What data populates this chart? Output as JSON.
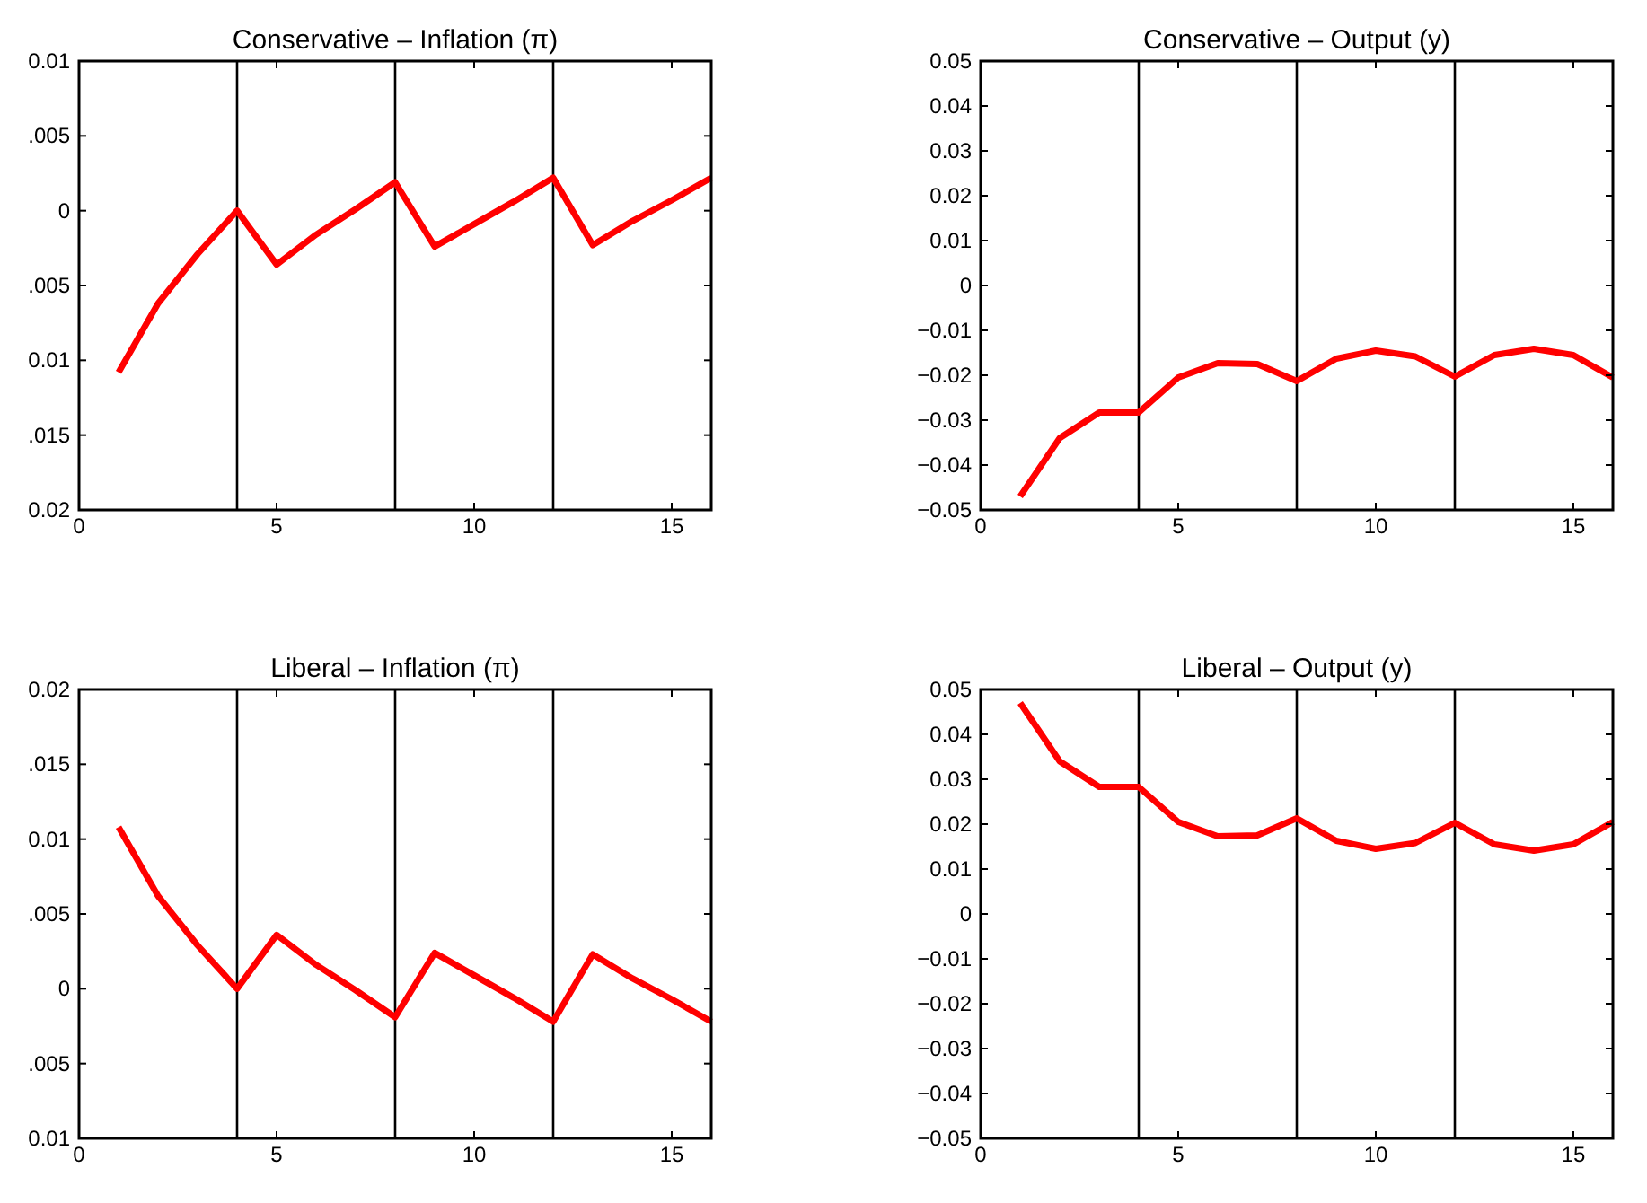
{
  "chart_data": [
    {
      "type": "line",
      "title": "Conservative – Inflation (π)",
      "x": [
        1,
        2,
        3,
        4,
        5,
        6,
        7,
        8,
        9,
        10,
        11,
        12,
        13,
        14,
        15,
        16
      ],
      "series": [
        {
          "color": "#ff0000",
          "values": [
            -0.0108,
            -0.0062,
            -0.0029,
            0.0,
            -0.0036,
            -0.0016,
            0.0001,
            0.0019,
            -0.0024,
            -0.0009,
            0.0006,
            0.0022,
            -0.0023,
            -0.0007,
            0.0007,
            0.0022
          ]
        }
      ],
      "xlim": [
        0,
        16
      ],
      "xticks": [
        0,
        5,
        10,
        15
      ],
      "ylim": [
        -0.02,
        0.01
      ],
      "yticks": [
        {
          "value": 0.01,
          "label": "0.01"
        },
        {
          "value": 0.005,
          "label": ".005"
        },
        0,
        {
          "value": -0.005,
          "label": ".005"
        },
        {
          "value": -0.01,
          "label": "0.01"
        },
        {
          "value": -0.015,
          "label": ".015"
        },
        {
          "value": -0.02,
          "label": "0.02"
        }
      ],
      "ref_lines": [
        {
          "axis": "x",
          "value": 4,
          "color": "#000000"
        },
        {
          "axis": "x",
          "value": 8,
          "color": "#000000"
        },
        {
          "axis": "x",
          "value": 12,
          "color": "#000000"
        }
      ]
    },
    {
      "type": "line",
      "title": "Conservative – Output (y)",
      "x": [
        1,
        2,
        3,
        4,
        5,
        6,
        7,
        8,
        9,
        10,
        11,
        12,
        13,
        14,
        15,
        16
      ],
      "series": [
        {
          "color": "#ff0000",
          "values": [
            -0.047,
            -0.034,
            -0.0283,
            -0.0283,
            -0.0205,
            -0.0173,
            -0.0175,
            -0.0213,
            -0.0163,
            -0.0145,
            -0.0158,
            -0.0203,
            -0.0155,
            -0.0141,
            -0.0155,
            -0.0205
          ]
        }
      ],
      "xlim": [
        0,
        16
      ],
      "xticks": [
        0,
        5,
        10,
        15
      ],
      "ylim": [
        -0.05,
        0.05
      ],
      "yticks": [
        -0.05,
        -0.04,
        -0.03,
        -0.02,
        -0.01,
        0,
        0.01,
        0.02,
        0.03,
        0.04,
        0.05
      ],
      "ref_lines": [
        {
          "axis": "x",
          "value": 4,
          "color": "#000000"
        },
        {
          "axis": "x",
          "value": 8,
          "color": "#000000"
        },
        {
          "axis": "x",
          "value": 12,
          "color": "#000000"
        }
      ]
    },
    {
      "type": "line",
      "title": "Liberal – Inflation (π)",
      "x": [
        1,
        2,
        3,
        4,
        5,
        6,
        7,
        8,
        9,
        10,
        11,
        12,
        13,
        14,
        15,
        16
      ],
      "series": [
        {
          "color": "#ff0000",
          "values": [
            0.0108,
            0.0062,
            0.0029,
            0.0,
            0.0036,
            0.0016,
            -0.0001,
            -0.0019,
            0.0024,
            0.0009,
            -0.0006,
            -0.0022,
            0.0023,
            0.0007,
            -0.0007,
            -0.0022
          ]
        }
      ],
      "xlim": [
        0,
        16
      ],
      "xticks": [
        0,
        5,
        10,
        15
      ],
      "ylim": [
        -0.01,
        0.02
      ],
      "yticks": [
        {
          "value": 0.02,
          "label": "0.02"
        },
        {
          "value": 0.015,
          "label": ".015"
        },
        {
          "value": 0.01,
          "label": "0.01"
        },
        {
          "value": 0.005,
          "label": ".005"
        },
        0,
        {
          "value": -0.005,
          "label": ".005"
        },
        {
          "value": -0.01,
          "label": "0.01"
        }
      ],
      "ref_lines": [
        {
          "axis": "x",
          "value": 4,
          "color": "#000000"
        },
        {
          "axis": "x",
          "value": 8,
          "color": "#000000"
        },
        {
          "axis": "x",
          "value": 12,
          "color": "#000000"
        }
      ]
    },
    {
      "type": "line",
      "title": "Liberal – Output (y)",
      "x": [
        1,
        2,
        3,
        4,
        5,
        6,
        7,
        8,
        9,
        10,
        11,
        12,
        13,
        14,
        15,
        16
      ],
      "series": [
        {
          "color": "#ff0000",
          "values": [
            0.047,
            0.034,
            0.0283,
            0.0283,
            0.0205,
            0.0173,
            0.0175,
            0.0213,
            0.0163,
            0.0145,
            0.0158,
            0.0203,
            0.0155,
            0.0141,
            0.0155,
            0.0205
          ]
        }
      ],
      "xlim": [
        0,
        16
      ],
      "xticks": [
        0,
        5,
        10,
        15
      ],
      "ylim": [
        -0.05,
        0.05
      ],
      "yticks": [
        -0.05,
        -0.04,
        -0.03,
        -0.02,
        -0.01,
        0,
        0.01,
        0.02,
        0.03,
        0.04,
        0.05
      ],
      "ref_lines": [
        {
          "axis": "x",
          "value": 4,
          "color": "#000000"
        },
        {
          "axis": "x",
          "value": 8,
          "color": "#000000"
        },
        {
          "axis": "x",
          "value": 12,
          "color": "#000000"
        }
      ]
    }
  ]
}
